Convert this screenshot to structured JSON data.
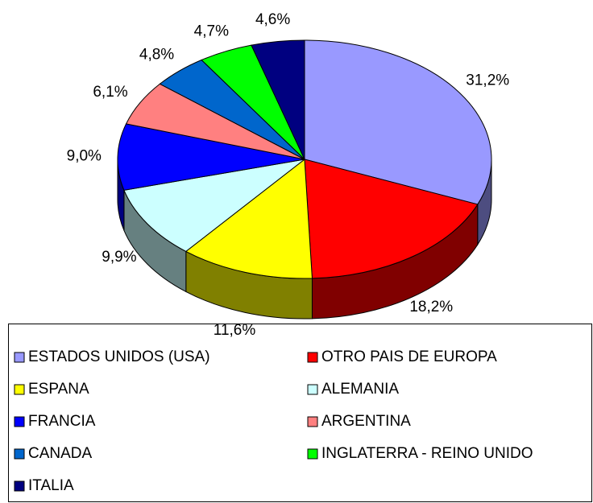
{
  "chart_data": {
    "type": "pie",
    "categories": [
      "ESTADOS UNIDOS (USA)",
      "OTRO PAIS DE EUROPA",
      "ESPANA",
      "ALEMANIA",
      "FRANCIA",
      "ARGENTINA",
      "CANADA",
      "INGLATERRA - REINO UNIDO",
      "ITALIA"
    ],
    "values": [
      31.2,
      18.2,
      11.6,
      9.9,
      9.0,
      6.1,
      4.8,
      4.7,
      4.6
    ],
    "value_labels": [
      "31,2%",
      "18,2%",
      "11,6%",
      "9,9%",
      "9,0%",
      "6,1%",
      "4,8%",
      "4,7%",
      "4,6%"
    ],
    "colors": [
      "#9999ff",
      "#ff0000",
      "#ffff00",
      "#ccffff",
      "#0000ff",
      "#ff8080",
      "#0066cc",
      "#00ff00",
      "#000080"
    ]
  }
}
